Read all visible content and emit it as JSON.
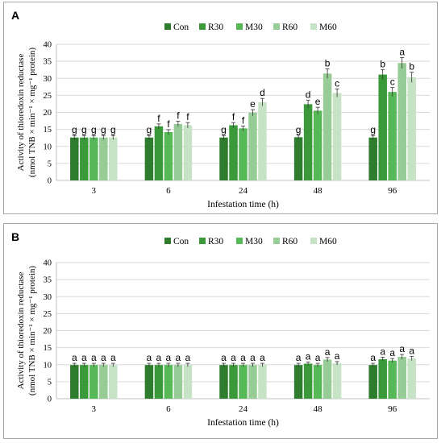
{
  "chart_data": [
    {
      "type": "bar",
      "panel_label": "A",
      "categories": [
        "3",
        "6",
        "24",
        "48",
        "96"
      ],
      "series": [
        {
          "name": "Con",
          "color": "#2e7d2e",
          "values": [
            12.6,
            12.6,
            12.6,
            12.7,
            12.6
          ],
          "errors": [
            0.6,
            0.6,
            0.6,
            0.6,
            0.6
          ],
          "letters": [
            "g",
            "g",
            "g",
            "g",
            "g"
          ]
        },
        {
          "name": "R30",
          "color": "#3a9a3a",
          "values": [
            12.6,
            15.9,
            16.2,
            22.4,
            31.1
          ],
          "errors": [
            0.6,
            0.7,
            0.8,
            1.2,
            1.5
          ],
          "letters": [
            "g",
            "f",
            "f",
            "d",
            "b"
          ]
        },
        {
          "name": "M30",
          "color": "#56b856",
          "values": [
            12.6,
            14.2,
            15.3,
            20.5,
            26.0
          ],
          "errors": [
            0.6,
            0.7,
            0.7,
            1.0,
            1.3
          ],
          "letters": [
            "g",
            "f",
            "f",
            "e",
            "c"
          ]
        },
        {
          "name": "R60",
          "color": "#97cc97",
          "values": [
            12.6,
            16.6,
            19.9,
            31.4,
            34.5
          ],
          "errors": [
            0.6,
            0.8,
            0.9,
            1.4,
            1.6
          ],
          "letters": [
            "g",
            "f",
            "e",
            "b",
            "a"
          ]
        },
        {
          "name": "M60",
          "color": "#c6e3c6",
          "values": [
            12.6,
            16.2,
            23.0,
            25.7,
            30.3
          ],
          "errors": [
            0.6,
            0.8,
            1.1,
            1.2,
            1.5
          ],
          "letters": [
            "g",
            "f",
            "d",
            "c",
            "b"
          ]
        }
      ],
      "xlabel": "Infestation time (h)",
      "ylabel_line1": "Activity of thioredoxin reductase",
      "ylabel_line2": "(nmol TNB × min⁻¹ × mg⁻¹ protein)",
      "ylim": [
        0,
        40
      ],
      "yticks": [
        "0",
        "5",
        "10",
        "15",
        "20",
        "25",
        "30",
        "35",
        "40"
      ],
      "grid": true,
      "legend_position": "top"
    },
    {
      "type": "bar",
      "panel_label": "B",
      "categories": [
        "3",
        "6",
        "24",
        "48",
        "96"
      ],
      "series": [
        {
          "name": "Con",
          "color": "#2e7d2e",
          "values": [
            9.9,
            9.9,
            9.9,
            9.9,
            9.9
          ],
          "errors": [
            0.5,
            0.5,
            0.5,
            0.5,
            0.5
          ],
          "letters": [
            "a",
            "a",
            "a",
            "a",
            "a"
          ]
        },
        {
          "name": "R30",
          "color": "#3a9a3a",
          "values": [
            9.9,
            9.9,
            9.9,
            10.3,
            11.6
          ],
          "errors": [
            0.5,
            0.5,
            0.5,
            0.5,
            0.6
          ],
          "letters": [
            "a",
            "a",
            "a",
            "a",
            "a"
          ]
        },
        {
          "name": "M30",
          "color": "#56b856",
          "values": [
            9.9,
            9.9,
            9.9,
            9.9,
            11.2
          ],
          "errors": [
            0.5,
            0.5,
            0.5,
            0.5,
            0.6
          ],
          "letters": [
            "a",
            "a",
            "a",
            "a",
            "a"
          ]
        },
        {
          "name": "R60",
          "color": "#97cc97",
          "values": [
            9.9,
            9.9,
            9.9,
            11.5,
            12.3
          ],
          "errors": [
            0.5,
            0.5,
            0.5,
            0.6,
            0.7
          ],
          "letters": [
            "a",
            "a",
            "a",
            "a",
            "a"
          ]
        },
        {
          "name": "M60",
          "color": "#c6e3c6",
          "values": [
            9.9,
            9.9,
            9.9,
            10.4,
            11.8
          ],
          "errors": [
            0.5,
            0.5,
            0.5,
            0.5,
            0.6
          ],
          "letters": [
            "a",
            "a",
            "a",
            "a",
            "a"
          ]
        }
      ],
      "xlabel": "Infestation time (h)",
      "ylabel_line1": "Activity of thioredoxin reductase",
      "ylabel_line2": "(nmol TNB × min⁻¹ × mg⁻¹ protein)",
      "ylim": [
        0,
        40
      ],
      "yticks": [
        "0",
        "5",
        "10",
        "15",
        "20",
        "25",
        "30",
        "35",
        "40"
      ],
      "grid": true,
      "legend_position": "top"
    }
  ]
}
